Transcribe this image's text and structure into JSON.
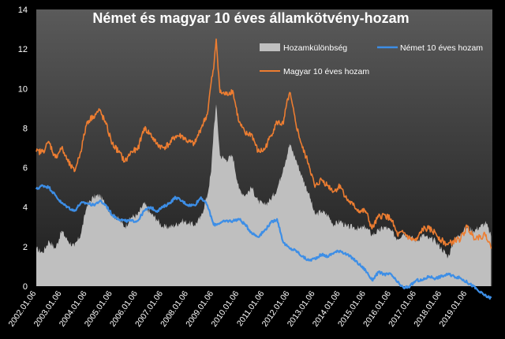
{
  "chart_data": {
    "type": "line",
    "title": "Német és magyar  10 éves államkötvény-hozam",
    "xlabel": "",
    "ylabel": "",
    "ylim": [
      0,
      14
    ],
    "yticks": [
      "0",
      "2",
      "4",
      "6",
      "8",
      "10",
      "12",
      "14"
    ],
    "xlim": [
      2002.0,
      2020.0
    ],
    "xtick_labels": [
      "2002.01.06",
      "2003.01.06",
      "2004.01.06",
      "2005.01.06",
      "2006.01.06",
      "2007.01.06",
      "2008.01.06",
      "2009.01.06",
      "2010.01.06",
      "2011.01.06",
      "2012.01.06",
      "2013.01.06",
      "2014.01.06",
      "2015.01.06",
      "2016.01.06",
      "2017.01.06",
      "2018.01.06",
      "2019.01.06"
    ],
    "grid": false,
    "legend": "top-right",
    "colors": {
      "background": "#000000",
      "plot_background_top": "#5a5a5a",
      "plot_background_bottom": "#1e1e1e",
      "spread": "#bfbfbf",
      "german": "#3d8ee6",
      "hungarian": "#ed7d31",
      "text": "#ffffff"
    },
    "series": [
      {
        "name": "Hozamkülönbség",
        "kind": "area",
        "x": [
          2002.0,
          2002.25,
          2002.5,
          2002.75,
          2003.0,
          2003.25,
          2003.5,
          2003.75,
          2004.0,
          2004.25,
          2004.5,
          2004.75,
          2005.0,
          2005.25,
          2005.5,
          2005.75,
          2006.0,
          2006.25,
          2006.5,
          2006.75,
          2007.0,
          2007.25,
          2007.5,
          2007.75,
          2008.0,
          2008.25,
          2008.5,
          2008.75,
          2008.9,
          2009.0,
          2009.1,
          2009.25,
          2009.5,
          2009.75,
          2010.0,
          2010.25,
          2010.5,
          2010.75,
          2011.0,
          2011.25,
          2011.5,
          2011.75,
          2011.85,
          2012.0,
          2012.25,
          2012.5,
          2012.75,
          2013.0,
          2013.25,
          2013.5,
          2013.75,
          2014.0,
          2014.25,
          2014.5,
          2014.75,
          2015.0,
          2015.25,
          2015.5,
          2015.75,
          2016.0,
          2016.25,
          2016.5,
          2016.75,
          2017.0,
          2017.25,
          2017.5,
          2017.75,
          2018.0,
          2018.25,
          2018.5,
          2018.75,
          2019.0,
          2019.25,
          2019.5,
          2019.75,
          2019.95
        ],
        "values": [
          1.9,
          1.7,
          2.3,
          1.9,
          2.8,
          2.3,
          2.0,
          2.6,
          4.1,
          4.5,
          4.6,
          4.1,
          3.6,
          3.4,
          3.0,
          3.5,
          3.6,
          4.2,
          3.7,
          3.4,
          3.0,
          3.0,
          3.1,
          3.3,
          3.2,
          3.1,
          3.5,
          4.6,
          5.8,
          7.9,
          9.2,
          6.6,
          6.4,
          6.6,
          4.9,
          4.6,
          5.0,
          4.3,
          4.1,
          4.4,
          4.9,
          6.0,
          6.4,
          7.2,
          6.4,
          5.5,
          4.7,
          3.6,
          3.8,
          3.6,
          3.1,
          3.3,
          3.0,
          3.0,
          2.9,
          3.0,
          2.6,
          2.8,
          3.0,
          2.8,
          2.4,
          2.7,
          2.5,
          2.3,
          2.6,
          2.4,
          2.3,
          1.9,
          1.5,
          2.3,
          2.7,
          3.0,
          2.8,
          3.0,
          3.2,
          2.5
        ]
      },
      {
        "name": "Német 10 éves hozam",
        "kind": "line",
        "x": [
          2002.0,
          2002.25,
          2002.5,
          2002.75,
          2003.0,
          2003.25,
          2003.5,
          2003.75,
          2004.0,
          2004.25,
          2004.5,
          2004.75,
          2005.0,
          2005.25,
          2005.5,
          2005.75,
          2006.0,
          2006.25,
          2006.5,
          2006.75,
          2007.0,
          2007.25,
          2007.5,
          2007.75,
          2008.0,
          2008.25,
          2008.5,
          2008.75,
          2009.0,
          2009.25,
          2009.5,
          2009.75,
          2010.0,
          2010.25,
          2010.5,
          2010.75,
          2011.0,
          2011.25,
          2011.5,
          2011.75,
          2012.0,
          2012.25,
          2012.5,
          2012.75,
          2013.0,
          2013.25,
          2013.5,
          2013.75,
          2014.0,
          2014.25,
          2014.5,
          2014.75,
          2015.0,
          2015.25,
          2015.5,
          2015.75,
          2016.0,
          2016.25,
          2016.5,
          2016.75,
          2017.0,
          2017.25,
          2017.5,
          2017.75,
          2018.0,
          2018.25,
          2018.5,
          2018.75,
          2019.0,
          2019.25,
          2019.5,
          2019.75,
          2019.95
        ],
        "values": [
          4.9,
          5.1,
          5.0,
          4.6,
          4.2,
          4.0,
          3.8,
          4.2,
          4.2,
          4.1,
          4.3,
          4.1,
          3.6,
          3.4,
          3.3,
          3.3,
          3.3,
          3.8,
          4.0,
          3.8,
          4.0,
          4.2,
          4.5,
          4.3,
          4.1,
          4.1,
          4.5,
          4.1,
          3.1,
          3.2,
          3.3,
          3.3,
          3.4,
          3.1,
          2.7,
          2.5,
          2.8,
          3.2,
          3.4,
          2.2,
          1.9,
          1.8,
          1.5,
          1.3,
          1.4,
          1.6,
          1.5,
          1.7,
          1.8,
          1.6,
          1.4,
          1.1,
          0.8,
          0.3,
          0.7,
          0.6,
          0.6,
          0.2,
          -0.1,
          0.0,
          0.3,
          0.3,
          0.5,
          0.4,
          0.5,
          0.6,
          0.5,
          0.4,
          0.2,
          0.0,
          -0.3,
          -0.5,
          -0.6
        ]
      },
      {
        "name": "Magyar 10 éves hozam",
        "kind": "line",
        "x": [
          2002.0,
          2002.25,
          2002.5,
          2002.75,
          2003.0,
          2003.25,
          2003.5,
          2003.75,
          2004.0,
          2004.25,
          2004.5,
          2004.75,
          2005.0,
          2005.25,
          2005.5,
          2005.75,
          2006.0,
          2006.25,
          2006.5,
          2006.75,
          2007.0,
          2007.25,
          2007.5,
          2007.75,
          2008.0,
          2008.25,
          2008.5,
          2008.75,
          2008.9,
          2009.0,
          2009.1,
          2009.25,
          2009.5,
          2009.75,
          2010.0,
          2010.25,
          2010.5,
          2010.75,
          2011.0,
          2011.25,
          2011.5,
          2011.75,
          2011.85,
          2012.0,
          2012.25,
          2012.5,
          2012.75,
          2013.0,
          2013.25,
          2013.5,
          2013.75,
          2014.0,
          2014.25,
          2014.5,
          2014.75,
          2015.0,
          2015.25,
          2015.5,
          2015.75,
          2016.0,
          2016.25,
          2016.5,
          2016.75,
          2017.0,
          2017.25,
          2017.5,
          2017.75,
          2018.0,
          2018.25,
          2018.5,
          2018.75,
          2019.0,
          2019.25,
          2019.5,
          2019.75,
          2019.95
        ],
        "values": [
          6.8,
          6.8,
          7.3,
          6.5,
          7.0,
          6.3,
          5.8,
          6.8,
          8.3,
          8.6,
          8.9,
          8.2,
          7.2,
          6.8,
          6.3,
          6.8,
          6.9,
          8.0,
          7.7,
          7.2,
          7.0,
          7.2,
          7.6,
          7.6,
          7.3,
          7.2,
          8.0,
          8.7,
          10.3,
          11.0,
          12.5,
          9.8,
          9.7,
          9.9,
          8.3,
          7.7,
          7.7,
          6.8,
          6.9,
          7.6,
          8.3,
          8.2,
          9.0,
          9.8,
          8.2,
          7.0,
          6.2,
          5.0,
          5.4,
          5.1,
          4.8,
          5.1,
          4.4,
          4.1,
          3.8,
          3.8,
          2.9,
          3.5,
          3.6,
          3.4,
          2.6,
          2.7,
          2.4,
          2.3,
          2.9,
          2.9,
          2.7,
          2.3,
          2.1,
          2.3,
          2.4,
          3.0,
          2.5,
          2.5,
          2.6,
          1.9
        ]
      }
    ]
  }
}
